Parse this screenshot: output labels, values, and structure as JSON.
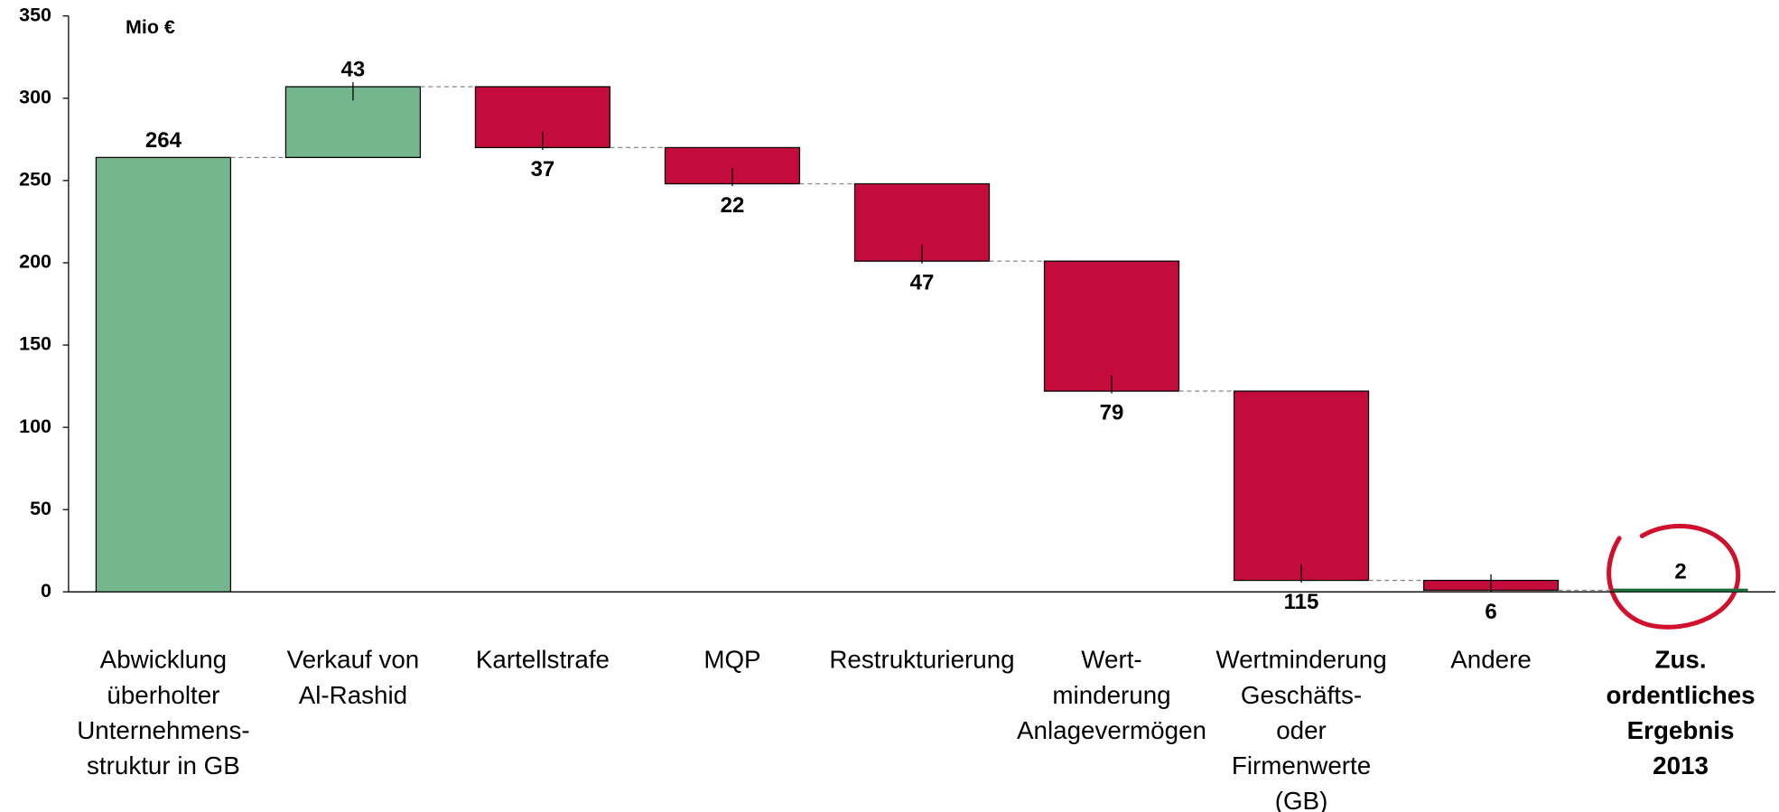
{
  "chart_data": {
    "type": "waterfall",
    "unit_label": "Mio €",
    "categories": [
      [
        "Abwicklung",
        "überholter",
        "Unternehmens-",
        "struktur in GB"
      ],
      [
        "Verkauf von",
        "Al-Rashid"
      ],
      [
        "Kartellstrafe"
      ],
      [
        "MQP"
      ],
      [
        "Restrukturierung"
      ],
      [
        "Wert-",
        "minderung",
        "Anlagevermögen"
      ],
      [
        "Wertminderung",
        "Geschäfts-",
        "oder",
        "Firmenwerte",
        "(GB)"
      ],
      [
        "Andere"
      ],
      [
        "Zus.",
        "ordentliches",
        "Ergebnis",
        "2013"
      ]
    ],
    "values": [
      264,
      43,
      37,
      22,
      47,
      79,
      115,
      6,
      2
    ],
    "measures": [
      "increase",
      "increase",
      "decrease",
      "decrease",
      "decrease",
      "decrease",
      "decrease",
      "decrease",
      "total"
    ],
    "colors": {
      "increase": "#74b68e",
      "decrease": "#c40c3c",
      "total": "#1e6b3c"
    },
    "ylim": [
      0,
      350
    ],
    "yticks": [
      0,
      50,
      100,
      150,
      200,
      250,
      300,
      350
    ]
  }
}
